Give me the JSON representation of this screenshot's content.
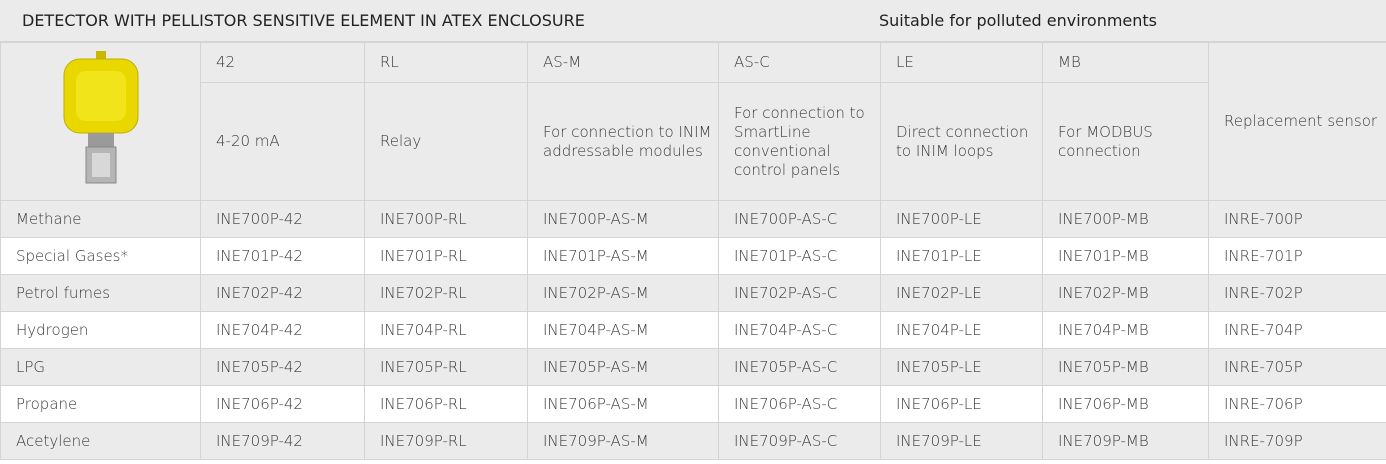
{
  "header": {
    "title": "DETECTOR WITH PELLISTOR SENSITIVE ELEMENT IN ATEX ENCLOSURE",
    "subtitle": "Suitable for polluted environments"
  },
  "table": {
    "codes": [
      "42",
      "RL",
      "AS-M",
      "AS-C",
      "LE",
      "MB"
    ],
    "descriptions": [
      "4-20 mA",
      "Relay",
      "For connection to INIM addressable modules",
      "For connection to SmartLine conventional control panels",
      "Direct connection to INIM loops",
      "For MODBUS connection",
      "Replacement sensor"
    ],
    "rows": [
      [
        "Methane",
        "INE700P-42",
        "INE700P-RL",
        "INE700P-AS-M",
        "INE700P-AS-C",
        "INE700P-LE",
        "INE700P-MB",
        "INRE-700P"
      ],
      [
        "Special Gases*",
        "INE701P-42",
        "INE701P-RL",
        "INE701P-AS-M",
        "INE701P-AS-C",
        "INE701P-LE",
        "INE701P-MB",
        "INRE-701P"
      ],
      [
        "Petrol fumes",
        "INE702P-42",
        "INE702P-RL",
        "INE702P-AS-M",
        "INE702P-AS-C",
        "INE702P-LE",
        "INE702P-MB",
        "INRE-702P"
      ],
      [
        "Hydrogen",
        "INE704P-42",
        "INE704P-RL",
        "INE704P-AS-M",
        "INE704P-AS-C",
        "INE704P-LE",
        "INE704P-MB",
        "INRE-704P"
      ],
      [
        "LPG",
        "INE705P-42",
        "INE705P-RL",
        "INE705P-AS-M",
        "INE705P-AS-C",
        "INE705P-LE",
        "INE705P-MB",
        "INRE-705P"
      ],
      [
        "Propane",
        "INE706P-42",
        "INE706P-RL",
        "INE706P-AS-M",
        "INE706P-AS-C",
        "INE706P-LE",
        "INE706P-MB",
        "INRE-706P"
      ],
      [
        "Acetylene",
        "INE709P-42",
        "INE709P-RL",
        "INE709P-AS-M",
        "INE709P-AS-C",
        "INE709P-LE",
        "INE709P-MB",
        "INRE-709P"
      ]
    ]
  }
}
